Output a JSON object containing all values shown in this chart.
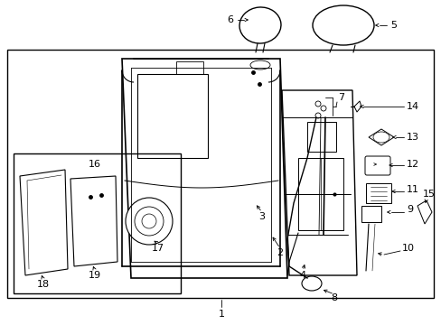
{
  "background_color": "#ffffff",
  "line_color": "#000000",
  "gray_color": "#888888",
  "fig_width": 4.89,
  "fig_height": 3.6,
  "dpi": 100
}
